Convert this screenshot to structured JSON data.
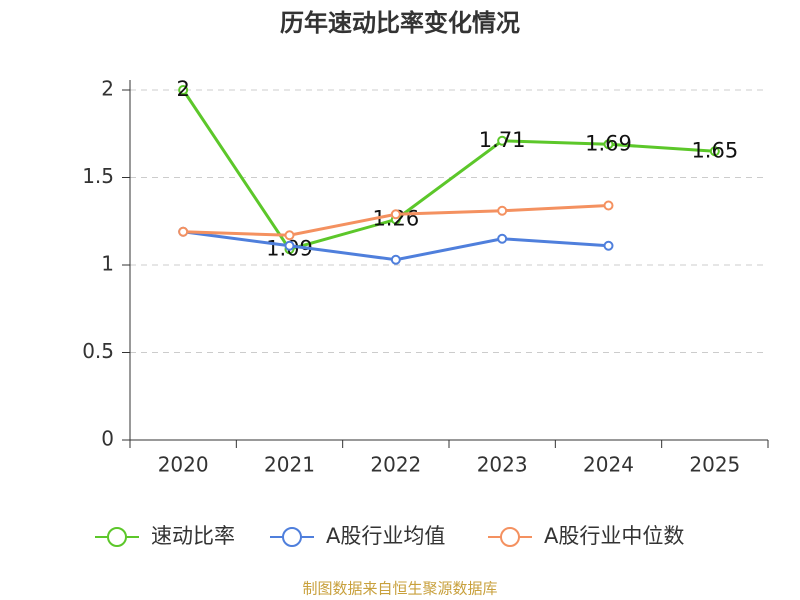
{
  "chart_data": {
    "type": "line",
    "title": "历年速动比率变化情况",
    "categories": [
      "2020",
      "2021",
      "2022",
      "2023",
      "2024",
      "2025"
    ],
    "series": [
      {
        "name": "速动比率",
        "color": "#5cc72a",
        "values": [
          2,
          1.09,
          1.26,
          1.71,
          1.69,
          1.65
        ],
        "show_labels": true
      },
      {
        "name": "A股行业均值",
        "color": "#4f7fdc",
        "values": [
          1.19,
          1.11,
          1.03,
          1.15,
          1.11,
          null
        ],
        "show_labels": false
      },
      {
        "name": "A股行业中位数",
        "color": "#f49160",
        "values": [
          1.19,
          1.17,
          1.29,
          1.31,
          1.34,
          null
        ],
        "show_labels": false
      }
    ],
    "ylim": [
      0,
      2
    ],
    "yticks": [
      0,
      0.5,
      1,
      1.5,
      2
    ],
    "grid": true,
    "legend": "bottom",
    "source": "制图数据来自恒生聚源数据库"
  }
}
